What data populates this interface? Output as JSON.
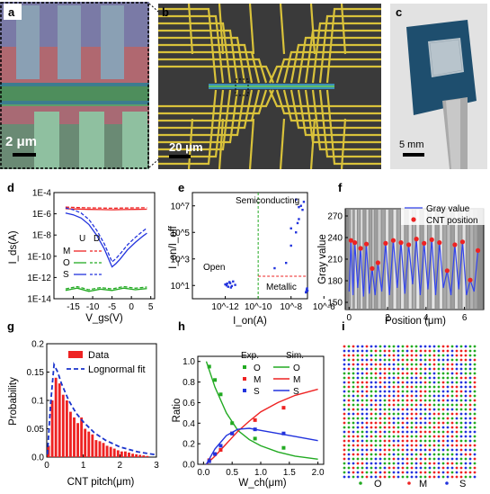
{
  "panels": {
    "a": {
      "label": "a",
      "scalebar": "2 μm"
    },
    "b": {
      "label": "b",
      "scalebar": "20 μm"
    },
    "c": {
      "label": "c",
      "scalebar": "5 mm"
    },
    "d": {
      "label": "d"
    },
    "e": {
      "label": "e"
    },
    "f": {
      "label": "f"
    },
    "g": {
      "label": "g"
    },
    "h": {
      "label": "h"
    },
    "i": {
      "label": "i",
      "legend": [
        "O",
        "M",
        "S"
      ]
    }
  },
  "colors": {
    "O": "#22aa22",
    "M": "#ee2222",
    "S": "#2233dd",
    "fit_blue": "#1a33cc",
    "gold": "#d9c23a"
  },
  "chart_data": [
    {
      "id": "d",
      "type": "line",
      "xlabel": "V_gs(V)",
      "ylabel": "I_ds(A)",
      "y_scale": "log",
      "xlim": [
        -20,
        6
      ],
      "ylim": [
        1e-14,
        0.0001
      ],
      "xticks": [
        -15,
        -10,
        -5,
        0,
        5
      ],
      "yticks": [
        "1E-4",
        "1E-6",
        "1E-8",
        "1E-10",
        "1E-12",
        "1E-14"
      ],
      "legend": {
        "header": [
          "U",
          "D"
        ],
        "items": [
          "M",
          "O",
          "S"
        ]
      },
      "series": [
        {
          "name": "M",
          "x": [
            -17,
            -14,
            -11,
            -8,
            -5,
            -2,
            1,
            4
          ],
          "y": [
            3e-06,
            2.8e-06,
            2.6e-06,
            2.5e-06,
            2.4e-06,
            2.5e-06,
            2.6e-06,
            2.7e-06
          ]
        },
        {
          "name": "O",
          "x": [
            -17,
            -14,
            -11,
            -8,
            -5,
            -2,
            1,
            4
          ],
          "y": [
            6e-14,
            1e-13,
            5e-14,
            8e-14,
            6e-14,
            1e-13,
            7e-14,
            9e-14
          ]
        },
        {
          "name": "S",
          "x": [
            -17,
            -15,
            -13,
            -11,
            -9,
            -7,
            -5,
            -4,
            -3,
            -1,
            1,
            3,
            4
          ],
          "y": [
            1.2e-06,
            8e-07,
            4e-07,
            1e-07,
            1e-08,
            5e-10,
            1e-11,
            2e-11,
            5e-11,
            4e-10,
            2e-09,
            8e-09,
            1.5e-08
          ]
        }
      ]
    },
    {
      "id": "e",
      "type": "scatter",
      "xlabel": "I_on(A)",
      "ylabel": "I_on/I_off",
      "x_scale": "log",
      "y_scale": "log",
      "xlim": [
        1e-14,
        1e-07
      ],
      "ylim": [
        1,
        100000000.0
      ],
      "xticks": [
        "10^-12",
        "10^-10",
        "10^-8",
        "10^-6"
      ],
      "yticks": [
        "10^1",
        "10^3",
        "10^5",
        "10^7"
      ],
      "region_labels": [
        "Semiconducting",
        "Open",
        "Metallic"
      ],
      "clusters": [
        {
          "name": "Open",
          "x": [
            1.2e-12,
            2e-12,
            1.5e-12,
            3e-12,
            1e-12,
            2.5e-12,
            1.8e-12,
            4e-12,
            1.3e-12,
            2.2e-12
          ],
          "y": [
            10,
            15,
            8,
            20,
            12,
            9,
            18,
            11,
            14,
            7
          ]
        },
        {
          "name": "Semiconducting",
          "x": [
            1e-09,
            5e-09,
            1e-08,
            2e-08,
            3e-08,
            5e-08,
            2e-08,
            4e-08,
            1e-08,
            3e-08,
            6e-08,
            2.5e-08
          ],
          "y": [
            200,
            500,
            10000.0,
            100000.0,
            1000000.0,
            5000000.0,
            30000000.0,
            10000000.0,
            200000.0,
            8000000.0,
            20000000.0,
            500000.0
          ]
        },
        {
          "name": "Metallic",
          "x": [
            8e-08,
            9e-08,
            1e-07,
            9.5e-08,
            8.5e-08
          ],
          "y": [
            3,
            5,
            4,
            6,
            3.5
          ]
        }
      ]
    },
    {
      "id": "f",
      "type": "line",
      "xlabel": "Position (μm)",
      "ylabel": "Gray value",
      "xlim": [
        -0.2,
        7.0
      ],
      "ylim": [
        140,
        280
      ],
      "xticks": [
        0,
        2,
        4,
        6
      ],
      "yticks": [
        150,
        180,
        210,
        240,
        270
      ],
      "series": [
        {
          "name": "Gray value",
          "x": [
            0,
            0.1,
            0.2,
            0.3,
            0.45,
            0.6,
            0.75,
            0.9,
            1.05,
            1.2,
            1.35,
            1.5,
            1.7,
            1.9,
            2.1,
            2.3,
            2.5,
            2.7,
            2.9,
            3.1,
            3.3,
            3.5,
            3.7,
            3.9,
            4.1,
            4.3,
            4.5,
            4.7,
            4.9,
            5.1,
            5.3,
            5.5,
            5.7,
            5.9,
            6.1,
            6.3,
            6.5,
            6.7
          ],
          "y": [
            165,
            236,
            160,
            233,
            170,
            225,
            158,
            231,
            162,
            197,
            160,
            205,
            165,
            232,
            160,
            236,
            170,
            233,
            162,
            230,
            175,
            238,
            160,
            232,
            168,
            237,
            160,
            233,
            170,
            194,
            160,
            230,
            168,
            234,
            160,
            181,
            165,
            222
          ]
        },
        {
          "name": "CNT position",
          "x": [
            0.1,
            0.3,
            0.6,
            0.9,
            1.2,
            1.5,
            1.9,
            2.3,
            2.7,
            3.1,
            3.5,
            3.9,
            4.3,
            4.7,
            5.1,
            5.5,
            5.9,
            6.3,
            6.7
          ],
          "y": [
            236,
            233,
            225,
            231,
            197,
            205,
            232,
            236,
            233,
            230,
            238,
            232,
            237,
            233,
            194,
            230,
            234,
            181,
            222
          ]
        }
      ]
    },
    {
      "id": "g",
      "type": "bar",
      "xlabel": "CNT pitch(μm)",
      "ylabel": "Probability",
      "xlim": [
        0,
        3
      ],
      "ylim": [
        0,
        0.2
      ],
      "xticks": [
        0,
        1,
        2,
        3
      ],
      "yticks": [
        0.0,
        0.05,
        0.1,
        0.15,
        0.2
      ],
      "series": [
        {
          "name": "Data",
          "x": [
            0.05,
            0.15,
            0.25,
            0.35,
            0.45,
            0.55,
            0.65,
            0.75,
            0.85,
            0.95,
            1.05,
            1.15,
            1.25,
            1.35,
            1.45,
            1.55,
            1.65,
            1.75,
            1.85,
            1.95,
            2.05,
            2.15,
            2.25,
            2.35,
            2.45,
            2.55,
            2.65,
            2.75
          ],
          "y": [
            0.02,
            0.1,
            0.14,
            0.13,
            0.11,
            0.1,
            0.08,
            0.07,
            0.06,
            0.07,
            0.05,
            0.045,
            0.04,
            0.03,
            0.028,
            0.025,
            0.02,
            0.018,
            0.015,
            0.012,
            0.01,
            0.01,
            0.008,
            0.006,
            0.005,
            0.004,
            0.003,
            0.002
          ]
        },
        {
          "name": "Lognormal fit",
          "x": [
            0.02,
            0.1,
            0.2,
            0.3,
            0.4,
            0.6,
            0.8,
            1.0,
            1.3,
            1.6,
            2.0,
            2.5,
            3.0
          ],
          "y": [
            0.005,
            0.09,
            0.163,
            0.15,
            0.13,
            0.1,
            0.078,
            0.062,
            0.043,
            0.03,
            0.018,
            0.009,
            0.004
          ]
        }
      ]
    },
    {
      "id": "h",
      "type": "line",
      "xlabel": "W_ch(μm)",
      "ylabel": "Ratio",
      "xlim": [
        -0.1,
        2.1
      ],
      "ylim": [
        0,
        1.05
      ],
      "xticks": [
        0.0,
        0.5,
        1.0,
        1.5,
        2.0
      ],
      "yticks": [
        0.0,
        0.2,
        0.4,
        0.6,
        0.8,
        1.0
      ],
      "legend": {
        "header": [
          "Exp.",
          "Sim."
        ],
        "items": [
          "O",
          "M",
          "S"
        ]
      },
      "series": [
        {
          "name": "O",
          "exp_x": [
            0.1,
            0.2,
            0.3,
            0.5,
            0.9,
            1.4
          ],
          "exp_y": [
            0.95,
            0.82,
            0.68,
            0.4,
            0.25,
            0.16
          ],
          "sim_x": [
            0.05,
            0.2,
            0.4,
            0.6,
            0.8,
            1.0,
            1.3,
            1.6,
            2.0
          ],
          "sim_y": [
            1.0,
            0.75,
            0.5,
            0.33,
            0.24,
            0.18,
            0.12,
            0.08,
            0.05
          ]
        },
        {
          "name": "M",
          "exp_x": [
            0.1,
            0.2,
            0.3,
            0.5,
            0.9,
            1.4
          ],
          "exp_y": [
            0.04,
            0.1,
            0.14,
            0.3,
            0.43,
            0.55
          ],
          "sim_x": [
            0.05,
            0.2,
            0.4,
            0.6,
            0.8,
            1.0,
            1.3,
            1.6,
            2.0
          ],
          "sim_y": [
            0.0,
            0.08,
            0.2,
            0.32,
            0.42,
            0.51,
            0.6,
            0.67,
            0.73
          ]
        },
        {
          "name": "S",
          "exp_x": [
            0.1,
            0.2,
            0.3,
            0.5,
            0.9,
            1.4
          ],
          "exp_y": [
            0.03,
            0.1,
            0.18,
            0.3,
            0.34,
            0.3
          ],
          "sim_x": [
            0.05,
            0.2,
            0.4,
            0.6,
            0.8,
            1.0,
            1.3,
            1.6,
            2.0
          ],
          "sim_y": [
            0.0,
            0.15,
            0.28,
            0.34,
            0.35,
            0.33,
            0.3,
            0.27,
            0.23
          ]
        }
      ]
    }
  ]
}
